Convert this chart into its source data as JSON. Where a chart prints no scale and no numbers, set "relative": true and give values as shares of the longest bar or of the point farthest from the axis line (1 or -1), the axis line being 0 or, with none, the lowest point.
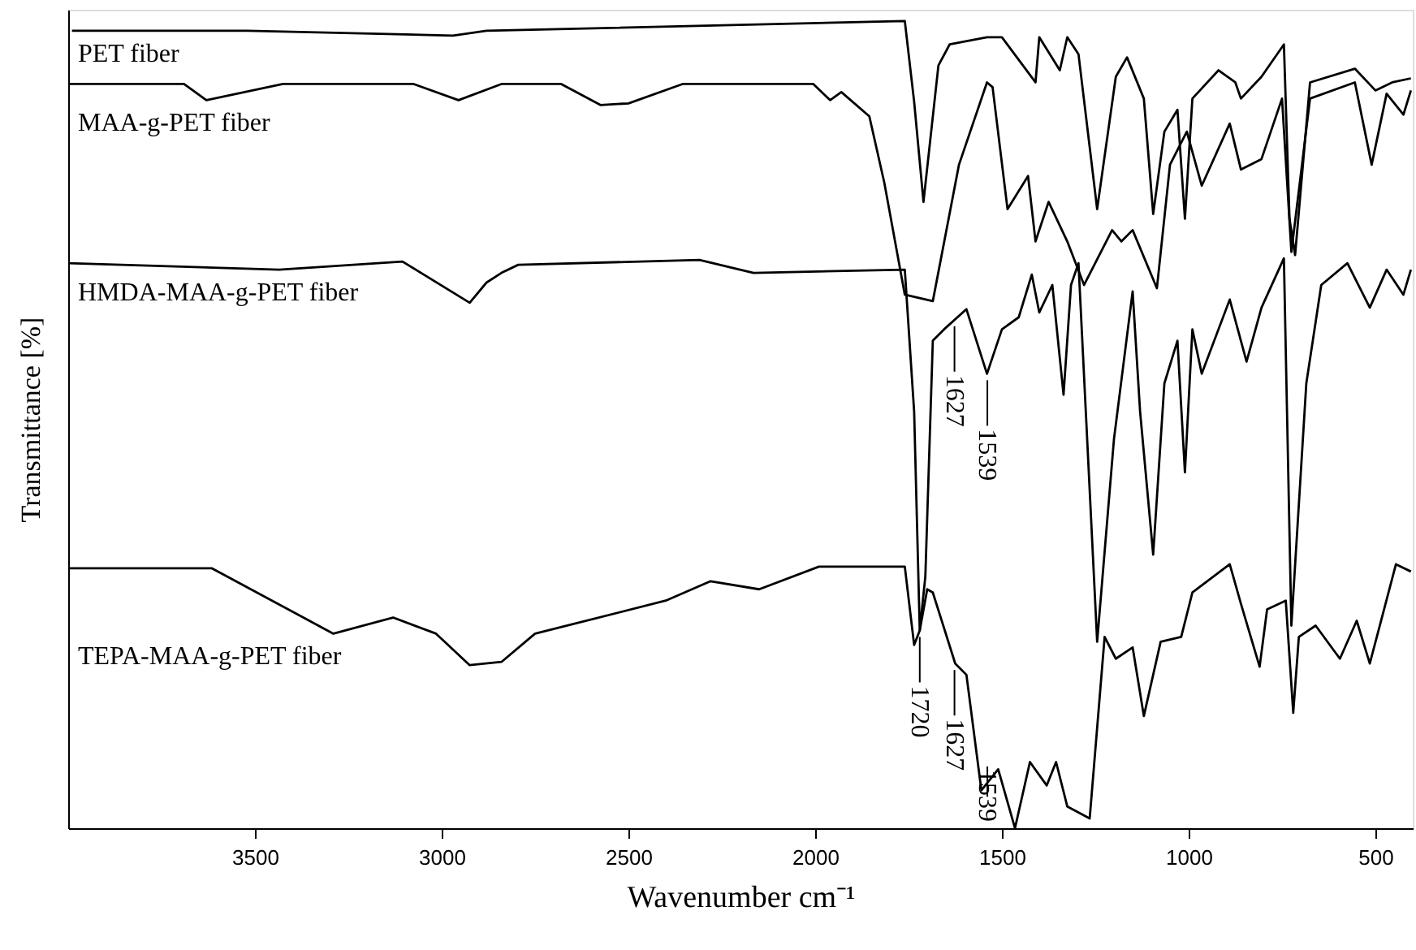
{
  "chart_data": {
    "type": "line",
    "relative": true,
    "xlabel": "Wavenumber cm⁻¹",
    "ylabel": "Transmittance [%]",
    "xlim": [
      4000,
      400
    ],
    "xticks": [
      3500,
      3000,
      2500,
      2000,
      1500,
      1000,
      500
    ],
    "grid": false,
    "legend": false,
    "marker": "none",
    "line_style": "solid",
    "tick_labels": "x",
    "series": [
      {
        "name": "PET fiber",
        "color": "#000000",
        "x": [
          3990,
          3520,
          2970,
          2880,
          1760,
          1735,
          1710,
          1670,
          1640,
          1540,
          1500,
          1410,
          1400,
          1345,
          1325,
          1295,
          1245,
          1195,
          1165,
          1120,
          1095,
          1065,
          1030,
          1010,
          990,
          920,
          875,
          860,
          805,
          745,
          730,
          715,
          675,
          555,
          500,
          455,
          405
        ],
        "values": [
          0.988,
          0.988,
          0.982,
          0.988,
          1.0,
          0.9,
          0.776,
          0.945,
          0.971,
          0.98,
          0.98,
          0.924,
          0.98,
          0.939,
          0.98,
          0.959,
          0.767,
          0.931,
          0.955,
          0.904,
          0.761,
          0.863,
          0.89,
          0.755,
          0.904,
          0.939,
          0.924,
          0.904,
          0.931,
          0.971,
          0.755,
          0.71,
          0.924,
          0.941,
          0.914,
          0.924,
          0.929
        ]
      },
      {
        "name": "MAA-g-PET fiber",
        "color": "#000000",
        "x": [
          4000,
          3690,
          3630,
          3425,
          3075,
          2955,
          2840,
          2680,
          2575,
          2500,
          2355,
          2005,
          1960,
          1930,
          1855,
          1815,
          1760,
          1685,
          1615,
          1540,
          1525,
          1485,
          1430,
          1410,
          1375,
          1325,
          1280,
          1205,
          1180,
          1150,
          1085,
          1050,
          1005,
          965,
          890,
          860,
          805,
          750,
          725,
          675,
          555,
          510,
          470,
          425,
          405
        ],
        "values": [
          0.922,
          0.922,
          0.902,
          0.922,
          0.922,
          0.902,
          0.922,
          0.922,
          0.896,
          0.898,
          0.922,
          0.922,
          0.902,
          0.912,
          0.882,
          0.8,
          0.661,
          0.653,
          0.822,
          0.924,
          0.918,
          0.767,
          0.808,
          0.727,
          0.776,
          0.727,
          0.673,
          0.741,
          0.727,
          0.741,
          0.669,
          0.822,
          0.863,
          0.796,
          0.873,
          0.816,
          0.829,
          0.904,
          0.714,
          0.904,
          0.924,
          0.822,
          0.91,
          0.884,
          0.914
        ]
      },
      {
        "name": "HMDA-MAA-g-PET fiber",
        "color": "#000000",
        "x": [
          4000,
          3435,
          3105,
          2925,
          2880,
          2840,
          2795,
          2310,
          2165,
          1760,
          1735,
          1720,
          1705,
          1685,
          1655,
          1595,
          1540,
          1500,
          1455,
          1420,
          1400,
          1365,
          1335,
          1315,
          1295,
          1245,
          1200,
          1150,
          1130,
          1095,
          1065,
          1030,
          1010,
          990,
          965,
          890,
          845,
          805,
          745,
          725,
          685,
          645,
          575,
          515,
          470,
          425,
          405
        ],
        "values": [
          0.7,
          0.692,
          0.702,
          0.651,
          0.676,
          0.688,
          0.698,
          0.704,
          0.688,
          0.692,
          0.516,
          0.245,
          0.312,
          0.604,
          0.618,
          0.643,
          0.563,
          0.618,
          0.633,
          0.686,
          0.639,
          0.673,
          0.537,
          0.673,
          0.7,
          0.231,
          0.482,
          0.665,
          0.516,
          0.339,
          0.551,
          0.604,
          0.441,
          0.618,
          0.563,
          0.655,
          0.578,
          0.645,
          0.706,
          0.251,
          0.551,
          0.673,
          0.7,
          0.645,
          0.692,
          0.661,
          0.692
        ]
      },
      {
        "name": "TEPA-MAA-g-PET fiber",
        "color": "#000000",
        "x": [
          4000,
          3615,
          3290,
          3130,
          3015,
          2925,
          2840,
          2750,
          2400,
          2280,
          2150,
          1990,
          1760,
          1735,
          1720,
          1700,
          1685,
          1625,
          1595,
          1555,
          1510,
          1465,
          1425,
          1380,
          1355,
          1325,
          1265,
          1225,
          1195,
          1150,
          1120,
          1075,
          1020,
          990,
          890,
          860,
          810,
          790,
          740,
          720,
          705,
          660,
          595,
          550,
          515,
          445,
          405
        ],
        "values": [
          0.322,
          0.322,
          0.241,
          0.261,
          0.241,
          0.202,
          0.206,
          0.241,
          0.282,
          0.306,
          0.296,
          0.324,
          0.324,
          0.227,
          0.245,
          0.296,
          0.292,
          0.204,
          0.19,
          0.047,
          0.073,
          0.0,
          0.082,
          0.053,
          0.082,
          0.027,
          0.012,
          0.237,
          0.21,
          0.224,
          0.139,
          0.231,
          0.237,
          0.292,
          0.327,
          0.278,
          0.2,
          0.271,
          0.282,
          0.143,
          0.237,
          0.251,
          0.21,
          0.257,
          0.204,
          0.327,
          0.318
        ]
      }
    ],
    "annotations": [
      {
        "text": "1627",
        "x": 1627,
        "y": 0.63
      },
      {
        "text": "1539",
        "x": 1539,
        "y": 0.563
      },
      {
        "text": "1720",
        "x": 1720,
        "y": 0.245
      },
      {
        "text": "1627",
        "x": 1627,
        "y": 0.204
      },
      {
        "text": "1539",
        "x": 1539,
        "y": 0.047
      }
    ]
  }
}
